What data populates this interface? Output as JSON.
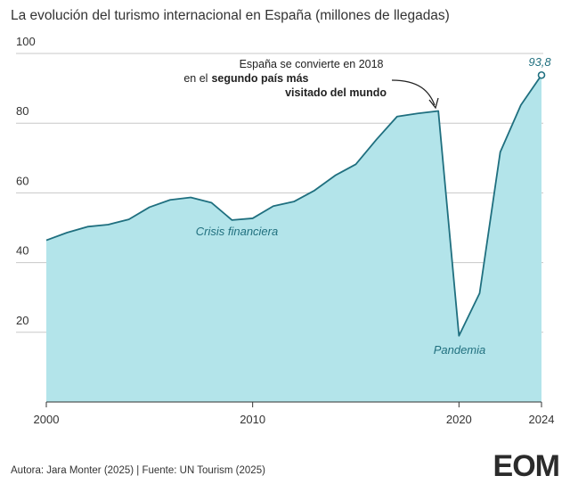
{
  "chart_data": {
    "type": "area",
    "title": "La evolución del turismo internacional en España (millones de llegadas)",
    "x": [
      2000,
      2001,
      2002,
      2003,
      2004,
      2005,
      2006,
      2007,
      2008,
      2009,
      2010,
      2011,
      2012,
      2013,
      2014,
      2015,
      2016,
      2017,
      2018,
      2019,
      2020,
      2021,
      2022,
      2023,
      2024
    ],
    "values": [
      46.4,
      48.6,
      50.3,
      50.9,
      52.4,
      55.9,
      58.0,
      58.7,
      57.2,
      52.2,
      52.7,
      56.2,
      57.5,
      60.7,
      65.0,
      68.2,
      75.3,
      81.9,
      82.8,
      83.5,
      19.0,
      31.2,
      71.7,
      85.2,
      93.8
    ],
    "value_labels": [
      null,
      null,
      null,
      null,
      null,
      null,
      null,
      null,
      null,
      null,
      null,
      null,
      null,
      null,
      null,
      null,
      null,
      null,
      null,
      null,
      null,
      null,
      null,
      null,
      "93,8"
    ],
    "color": "#1f6f7f",
    "fill": "#b3e4ea",
    "xlim": [
      2000,
      2024
    ],
    "xticks": [
      2000,
      2010,
      2020,
      2024
    ],
    "ylim": [
      0,
      100
    ],
    "yticks": [
      20,
      40,
      60,
      80,
      100
    ],
    "grid": true,
    "annotation_2018": [
      "España se convierte en 2018",
      "en el",
      "segundo país más",
      "visitado del mundo"
    ],
    "annotation_crisis": "Crisis financiera",
    "annotation_pandemia": "Pandemia",
    "source": "Autora: Jara Monter (2025) | Fuente: UN Tourism (2025)",
    "logo": "EOM"
  }
}
